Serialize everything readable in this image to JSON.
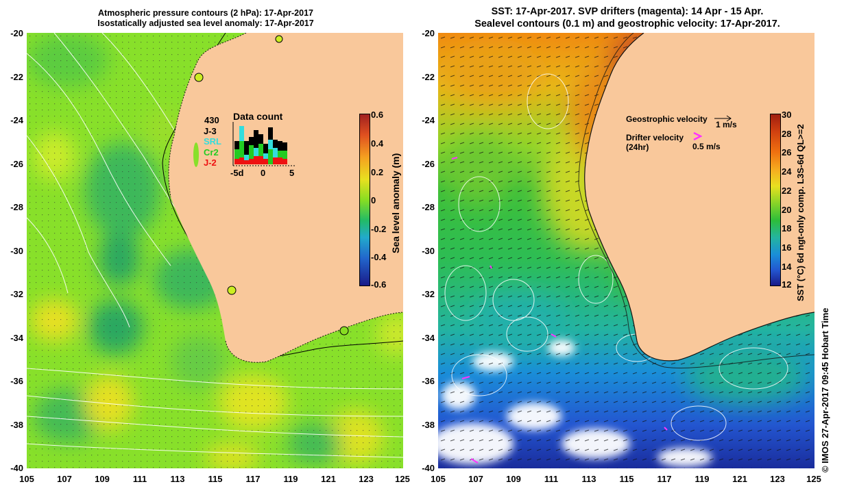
{
  "left_panel": {
    "title_line1": "Atmospheric pressure contours (2 hPa): 17-Apr-2017",
    "title_line2": "Isostatically adjusted sea level anomaly: 17-Apr-2017",
    "y_ticks": [
      "-20",
      "-22",
      "-24",
      "-26",
      "-28",
      "-30",
      "-32",
      "-34",
      "-36",
      "-38",
      "-40"
    ],
    "x_ticks": [
      "105",
      "107",
      "109",
      "111",
      "113",
      "115",
      "117",
      "119",
      "121",
      "123",
      "125"
    ],
    "colorbar": {
      "label": "Sea level anomaly (m)",
      "ticks": [
        "0.6",
        "0.4",
        "0.2",
        "0",
        "-0.2",
        "-0.4",
        "-0.6"
      ],
      "range": [
        -0.6,
        0.6
      ]
    },
    "data_count": {
      "title": "Data count",
      "count": "430",
      "missions": [
        {
          "name": "J-3",
          "color": "#000000"
        },
        {
          "name": "SRL",
          "color": "#33dddd"
        },
        {
          "name": "Cr2",
          "color": "#22cc22"
        },
        {
          "name": "J-2",
          "color": "#ee1111"
        }
      ],
      "x_ticks": [
        "-5d",
        "0",
        "5"
      ]
    }
  },
  "right_panel": {
    "title_line1": "SST: 17-Apr-2017. SVP drifters (magenta): 14 Apr - 15 Apr.",
    "title_line2": "Sealevel contours (0.1 m) and geostrophic velocity: 17-Apr-2017.",
    "y_ticks": [
      "-20",
      "-22",
      "-24",
      "-26",
      "-28",
      "-30",
      "-32",
      "-34",
      "-36",
      "-38",
      "-40"
    ],
    "x_ticks": [
      "105",
      "107",
      "109",
      "111",
      "113",
      "115",
      "117",
      "119",
      "121",
      "123",
      "125"
    ],
    "colorbar": {
      "label": "SST (°C) 6d ngt-only comp. L3S-6d QL>=2",
      "ticks": [
        "30",
        "28",
        "26",
        "24",
        "22",
        "20",
        "18",
        "16",
        "14",
        "12"
      ],
      "range": [
        12,
        30
      ]
    },
    "legend": {
      "geostrophic_label": "Geostrophic velocity",
      "geostrophic_scale": "1 m/s",
      "drifter_label": "Drifter velocity",
      "drifter_sub": "(24hr)",
      "drifter_scale": "0.5 m/s"
    }
  },
  "credit": "© IMOS 27-Apr-2017 09:45 Hobart Time",
  "colors": {
    "land": "#f9c89b",
    "drifter": "#ff33ff"
  }
}
